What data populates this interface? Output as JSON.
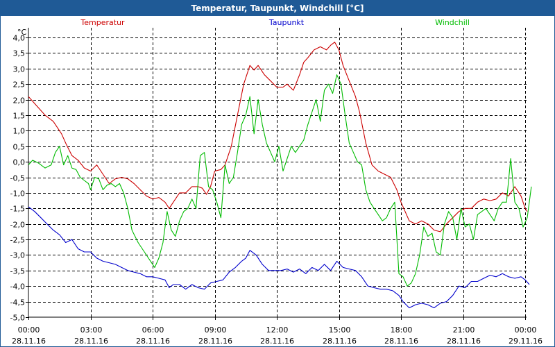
{
  "chart_data": {
    "type": "line",
    "title": "Temperatur, Taupunkt, Windchill [°C]",
    "ylabel": "°C",
    "ylim": [
      -5.0,
      4.0
    ],
    "yticks": [
      "4,0",
      "3,5",
      "3,0",
      "2,5",
      "2,0",
      "1,5",
      "1,0",
      "0,5",
      "0,0",
      "-0,5",
      "-1,0",
      "-1,5",
      "-2,0",
      "-2,5",
      "-3,0",
      "-3,5",
      "-4,0",
      "-4,5",
      "-5,0"
    ],
    "ytick_values": [
      4.0,
      3.5,
      3.0,
      2.5,
      2.0,
      1.5,
      1.0,
      0.5,
      0.0,
      -0.5,
      -1.0,
      -1.5,
      -2.0,
      -2.5,
      -3.0,
      -3.5,
      -4.0,
      -4.5,
      -5.0
    ],
    "xlim": [
      0,
      24
    ],
    "xticks": [
      {
        "time": "00:00",
        "date": "28.11.16",
        "hour": 0
      },
      {
        "time": "03:00",
        "date": "28.11.16",
        "hour": 3
      },
      {
        "time": "06:00",
        "date": "28.11.16",
        "hour": 6
      },
      {
        "time": "09:00",
        "date": "28.11.16",
        "hour": 9
      },
      {
        "time": "12:00",
        "date": "28.11.16",
        "hour": 12
      },
      {
        "time": "15:00",
        "date": "28.11.16",
        "hour": 15
      },
      {
        "time": "18:00",
        "date": "28.11.16",
        "hour": 18
      },
      {
        "time": "21:00",
        "date": "28.11.16",
        "hour": 21
      },
      {
        "time": "00:00",
        "date": "29.11.16",
        "hour": 24
      }
    ],
    "grid": true,
    "series": [
      {
        "name": "Temperatur",
        "color": "#cc0000",
        "points": [
          [
            0,
            2.1
          ],
          [
            0.4,
            1.8
          ],
          [
            0.8,
            1.5
          ],
          [
            1.2,
            1.3
          ],
          [
            1.6,
            0.9
          ],
          [
            1.8,
            0.6
          ],
          [
            2.1,
            0.2
          ],
          [
            2.4,
            0.05
          ],
          [
            2.7,
            -0.2
          ],
          [
            3.0,
            -0.3
          ],
          [
            3.3,
            -0.1
          ],
          [
            3.6,
            -0.4
          ],
          [
            3.9,
            -0.7
          ],
          [
            4.2,
            -0.55
          ],
          [
            4.5,
            -0.5
          ],
          [
            4.8,
            -0.55
          ],
          [
            5.1,
            -0.7
          ],
          [
            5.4,
            -0.9
          ],
          [
            5.7,
            -1.1
          ],
          [
            6.0,
            -1.2
          ],
          [
            6.3,
            -1.15
          ],
          [
            6.6,
            -1.3
          ],
          [
            6.8,
            -1.5
          ],
          [
            7.0,
            -1.3
          ],
          [
            7.3,
            -1.0
          ],
          [
            7.6,
            -1.0
          ],
          [
            7.9,
            -0.8
          ],
          [
            8.2,
            -0.8
          ],
          [
            8.4,
            -0.85
          ],
          [
            8.6,
            -1.05
          ],
          [
            8.8,
            -0.8
          ],
          [
            9.0,
            -0.3
          ],
          [
            9.3,
            -0.25
          ],
          [
            9.5,
            -0.1
          ],
          [
            9.8,
            0.5
          ],
          [
            10.1,
            1.5
          ],
          [
            10.4,
            2.5
          ],
          [
            10.7,
            3.1
          ],
          [
            10.9,
            2.95
          ],
          [
            11.1,
            3.1
          ],
          [
            11.4,
            2.8
          ],
          [
            11.7,
            2.6
          ],
          [
            12.0,
            2.4
          ],
          [
            12.3,
            2.4
          ],
          [
            12.5,
            2.5
          ],
          [
            12.8,
            2.3
          ],
          [
            13.1,
            2.8
          ],
          [
            13.3,
            3.2
          ],
          [
            13.5,
            3.35
          ],
          [
            13.8,
            3.6
          ],
          [
            14.1,
            3.7
          ],
          [
            14.4,
            3.6
          ],
          [
            14.6,
            3.75
          ],
          [
            14.8,
            3.85
          ],
          [
            15.0,
            3.6
          ],
          [
            15.2,
            3.1
          ],
          [
            15.5,
            2.6
          ],
          [
            15.8,
            2.1
          ],
          [
            16.0,
            1.6
          ],
          [
            16.3,
            0.6
          ],
          [
            16.6,
            -0.1
          ],
          [
            16.9,
            -0.3
          ],
          [
            17.2,
            -0.4
          ],
          [
            17.5,
            -0.5
          ],
          [
            17.8,
            -0.9
          ],
          [
            18.0,
            -1.3
          ],
          [
            18.2,
            -1.6
          ],
          [
            18.4,
            -1.9
          ],
          [
            18.7,
            -2.0
          ],
          [
            19.0,
            -1.9
          ],
          [
            19.3,
            -2.0
          ],
          [
            19.6,
            -2.2
          ],
          [
            19.9,
            -2.25
          ],
          [
            20.2,
            -2.0
          ],
          [
            20.5,
            -1.8
          ],
          [
            20.8,
            -1.6
          ],
          [
            21.1,
            -1.5
          ],
          [
            21.4,
            -1.5
          ],
          [
            21.7,
            -1.3
          ],
          [
            22.0,
            -1.2
          ],
          [
            22.3,
            -1.25
          ],
          [
            22.6,
            -1.2
          ],
          [
            22.9,
            -1.0
          ],
          [
            23.2,
            -1.1
          ],
          [
            23.5,
            -0.8
          ],
          [
            23.8,
            -1.1
          ],
          [
            24.0,
            -1.5
          ],
          [
            24.1,
            -1.6
          ]
        ]
      },
      {
        "name": "Taupunkt",
        "color": "#0000cc",
        "points": [
          [
            0,
            -1.45
          ],
          [
            0.3,
            -1.6
          ],
          [
            0.6,
            -1.8
          ],
          [
            0.9,
            -2.0
          ],
          [
            1.2,
            -2.2
          ],
          [
            1.5,
            -2.35
          ],
          [
            1.8,
            -2.6
          ],
          [
            2.1,
            -2.5
          ],
          [
            2.4,
            -2.8
          ],
          [
            2.7,
            -2.9
          ],
          [
            3.0,
            -2.9
          ],
          [
            3.3,
            -3.1
          ],
          [
            3.6,
            -3.2
          ],
          [
            3.9,
            -3.25
          ],
          [
            4.2,
            -3.3
          ],
          [
            4.5,
            -3.4
          ],
          [
            4.8,
            -3.5
          ],
          [
            5.1,
            -3.55
          ],
          [
            5.4,
            -3.6
          ],
          [
            5.7,
            -3.7
          ],
          [
            6.0,
            -3.7
          ],
          [
            6.3,
            -3.75
          ],
          [
            6.6,
            -3.8
          ],
          [
            6.8,
            -4.05
          ],
          [
            7.0,
            -3.95
          ],
          [
            7.3,
            -3.95
          ],
          [
            7.6,
            -4.1
          ],
          [
            7.9,
            -3.95
          ],
          [
            8.2,
            -4.05
          ],
          [
            8.5,
            -4.1
          ],
          [
            8.8,
            -3.9
          ],
          [
            9.1,
            -3.85
          ],
          [
            9.4,
            -3.8
          ],
          [
            9.7,
            -3.55
          ],
          [
            10.0,
            -3.4
          ],
          [
            10.3,
            -3.2
          ],
          [
            10.5,
            -3.1
          ],
          [
            10.7,
            -2.85
          ],
          [
            11.0,
            -3.0
          ],
          [
            11.3,
            -3.3
          ],
          [
            11.6,
            -3.5
          ],
          [
            11.9,
            -3.5
          ],
          [
            12.2,
            -3.5
          ],
          [
            12.5,
            -3.45
          ],
          [
            12.8,
            -3.55
          ],
          [
            13.1,
            -3.45
          ],
          [
            13.4,
            -3.6
          ],
          [
            13.7,
            -3.4
          ],
          [
            14.0,
            -3.5
          ],
          [
            14.3,
            -3.3
          ],
          [
            14.6,
            -3.5
          ],
          [
            14.9,
            -3.2
          ],
          [
            15.2,
            -3.4
          ],
          [
            15.5,
            -3.45
          ],
          [
            15.8,
            -3.5
          ],
          [
            16.1,
            -3.7
          ],
          [
            16.4,
            -4.0
          ],
          [
            16.7,
            -4.05
          ],
          [
            17.0,
            -4.1
          ],
          [
            17.3,
            -4.1
          ],
          [
            17.6,
            -4.15
          ],
          [
            17.9,
            -4.3
          ],
          [
            18.1,
            -4.5
          ],
          [
            18.4,
            -4.7
          ],
          [
            18.7,
            -4.6
          ],
          [
            19.0,
            -4.55
          ],
          [
            19.3,
            -4.6
          ],
          [
            19.6,
            -4.7
          ],
          [
            19.9,
            -4.55
          ],
          [
            20.2,
            -4.5
          ],
          [
            20.5,
            -4.3
          ],
          [
            20.8,
            -4.0
          ],
          [
            21.1,
            -4.05
          ],
          [
            21.4,
            -3.85
          ],
          [
            21.7,
            -3.85
          ],
          [
            22.0,
            -3.75
          ],
          [
            22.3,
            -3.65
          ],
          [
            22.6,
            -3.7
          ],
          [
            22.9,
            -3.6
          ],
          [
            23.2,
            -3.7
          ],
          [
            23.5,
            -3.75
          ],
          [
            23.8,
            -3.7
          ],
          [
            24.0,
            -3.8
          ],
          [
            24.2,
            -3.95
          ]
        ]
      },
      {
        "name": "Windchill",
        "color": "#00bb00",
        "points": [
          [
            0,
            -0.1
          ],
          [
            0.2,
            0.05
          ],
          [
            0.5,
            -0.05
          ],
          [
            0.8,
            -0.2
          ],
          [
            1.1,
            -0.1
          ],
          [
            1.3,
            0.3
          ],
          [
            1.5,
            0.5
          ],
          [
            1.7,
            -0.1
          ],
          [
            1.9,
            0.2
          ],
          [
            2.1,
            -0.2
          ],
          [
            2.3,
            -0.25
          ],
          [
            2.5,
            -0.5
          ],
          [
            2.7,
            -0.6
          ],
          [
            2.9,
            -0.7
          ],
          [
            3.0,
            -0.9
          ],
          [
            3.2,
            -0.5
          ],
          [
            3.4,
            -0.55
          ],
          [
            3.6,
            -0.9
          ],
          [
            3.8,
            -0.75
          ],
          [
            4.0,
            -0.7
          ],
          [
            4.2,
            -0.8
          ],
          [
            4.4,
            -0.7
          ],
          [
            4.6,
            -1.0
          ],
          [
            4.8,
            -1.5
          ],
          [
            5.0,
            -2.2
          ],
          [
            5.3,
            -2.6
          ],
          [
            5.6,
            -2.9
          ],
          [
            5.9,
            -3.2
          ],
          [
            6.1,
            -3.4
          ],
          [
            6.3,
            -3.1
          ],
          [
            6.5,
            -2.6
          ],
          [
            6.7,
            -1.6
          ],
          [
            6.9,
            -2.2
          ],
          [
            7.1,
            -2.4
          ],
          [
            7.3,
            -1.9
          ],
          [
            7.5,
            -1.6
          ],
          [
            7.7,
            -1.5
          ],
          [
            7.9,
            -1.2
          ],
          [
            8.1,
            -1.5
          ],
          [
            8.3,
            0.2
          ],
          [
            8.5,
            0.3
          ],
          [
            8.7,
            -0.8
          ],
          [
            8.9,
            -0.9
          ],
          [
            9.1,
            -1.3
          ],
          [
            9.3,
            -1.8
          ],
          [
            9.5,
            -0.1
          ],
          [
            9.7,
            -0.7
          ],
          [
            9.9,
            -0.5
          ],
          [
            10.1,
            0.3
          ],
          [
            10.3,
            1.2
          ],
          [
            10.5,
            1.5
          ],
          [
            10.7,
            2.1
          ],
          [
            10.9,
            0.9
          ],
          [
            11.1,
            2.0
          ],
          [
            11.3,
            1.2
          ],
          [
            11.5,
            0.6
          ],
          [
            11.7,
            0.3
          ],
          [
            11.9,
            0.0
          ],
          [
            12.1,
            0.5
          ],
          [
            12.3,
            -0.3
          ],
          [
            12.5,
            0.1
          ],
          [
            12.7,
            0.5
          ],
          [
            12.9,
            0.3
          ],
          [
            13.1,
            0.5
          ],
          [
            13.3,
            0.7
          ],
          [
            13.5,
            1.2
          ],
          [
            13.7,
            1.6
          ],
          [
            13.9,
            2.0
          ],
          [
            14.1,
            1.3
          ],
          [
            14.3,
            2.3
          ],
          [
            14.5,
            2.5
          ],
          [
            14.7,
            2.2
          ],
          [
            14.9,
            2.8
          ],
          [
            15.1,
            2.5
          ],
          [
            15.3,
            1.5
          ],
          [
            15.5,
            0.6
          ],
          [
            15.7,
            0.3
          ],
          [
            15.9,
            0.0
          ],
          [
            16.1,
            -0.1
          ],
          [
            16.3,
            -0.9
          ],
          [
            16.5,
            -1.3
          ],
          [
            16.7,
            -1.5
          ],
          [
            16.9,
            -1.7
          ],
          [
            17.1,
            -1.9
          ],
          [
            17.3,
            -1.8
          ],
          [
            17.5,
            -1.5
          ],
          [
            17.7,
            -1.3
          ],
          [
            17.9,
            -3.6
          ],
          [
            18.1,
            -3.7
          ],
          [
            18.3,
            -4.0
          ],
          [
            18.5,
            -3.9
          ],
          [
            18.7,
            -3.6
          ],
          [
            18.9,
            -3.0
          ],
          [
            19.1,
            -2.1
          ],
          [
            19.3,
            -2.4
          ],
          [
            19.5,
            -2.3
          ],
          [
            19.7,
            -2.9
          ],
          [
            19.9,
            -3.0
          ],
          [
            20.1,
            -2.0
          ],
          [
            20.3,
            -1.6
          ],
          [
            20.5,
            -1.8
          ],
          [
            20.7,
            -2.5
          ],
          [
            20.9,
            -1.5
          ],
          [
            21.1,
            -2.1
          ],
          [
            21.3,
            -2.0
          ],
          [
            21.5,
            -2.5
          ],
          [
            21.7,
            -1.7
          ],
          [
            21.9,
            -1.6
          ],
          [
            22.1,
            -1.5
          ],
          [
            22.3,
            -1.7
          ],
          [
            22.5,
            -1.9
          ],
          [
            22.7,
            -1.5
          ],
          [
            22.9,
            -1.3
          ],
          [
            23.1,
            -1.3
          ],
          [
            23.3,
            0.1
          ],
          [
            23.5,
            -1.3
          ],
          [
            23.7,
            -1.5
          ],
          [
            23.9,
            -2.1
          ],
          [
            24.1,
            -1.8
          ],
          [
            24.3,
            -0.8
          ]
        ]
      }
    ]
  }
}
